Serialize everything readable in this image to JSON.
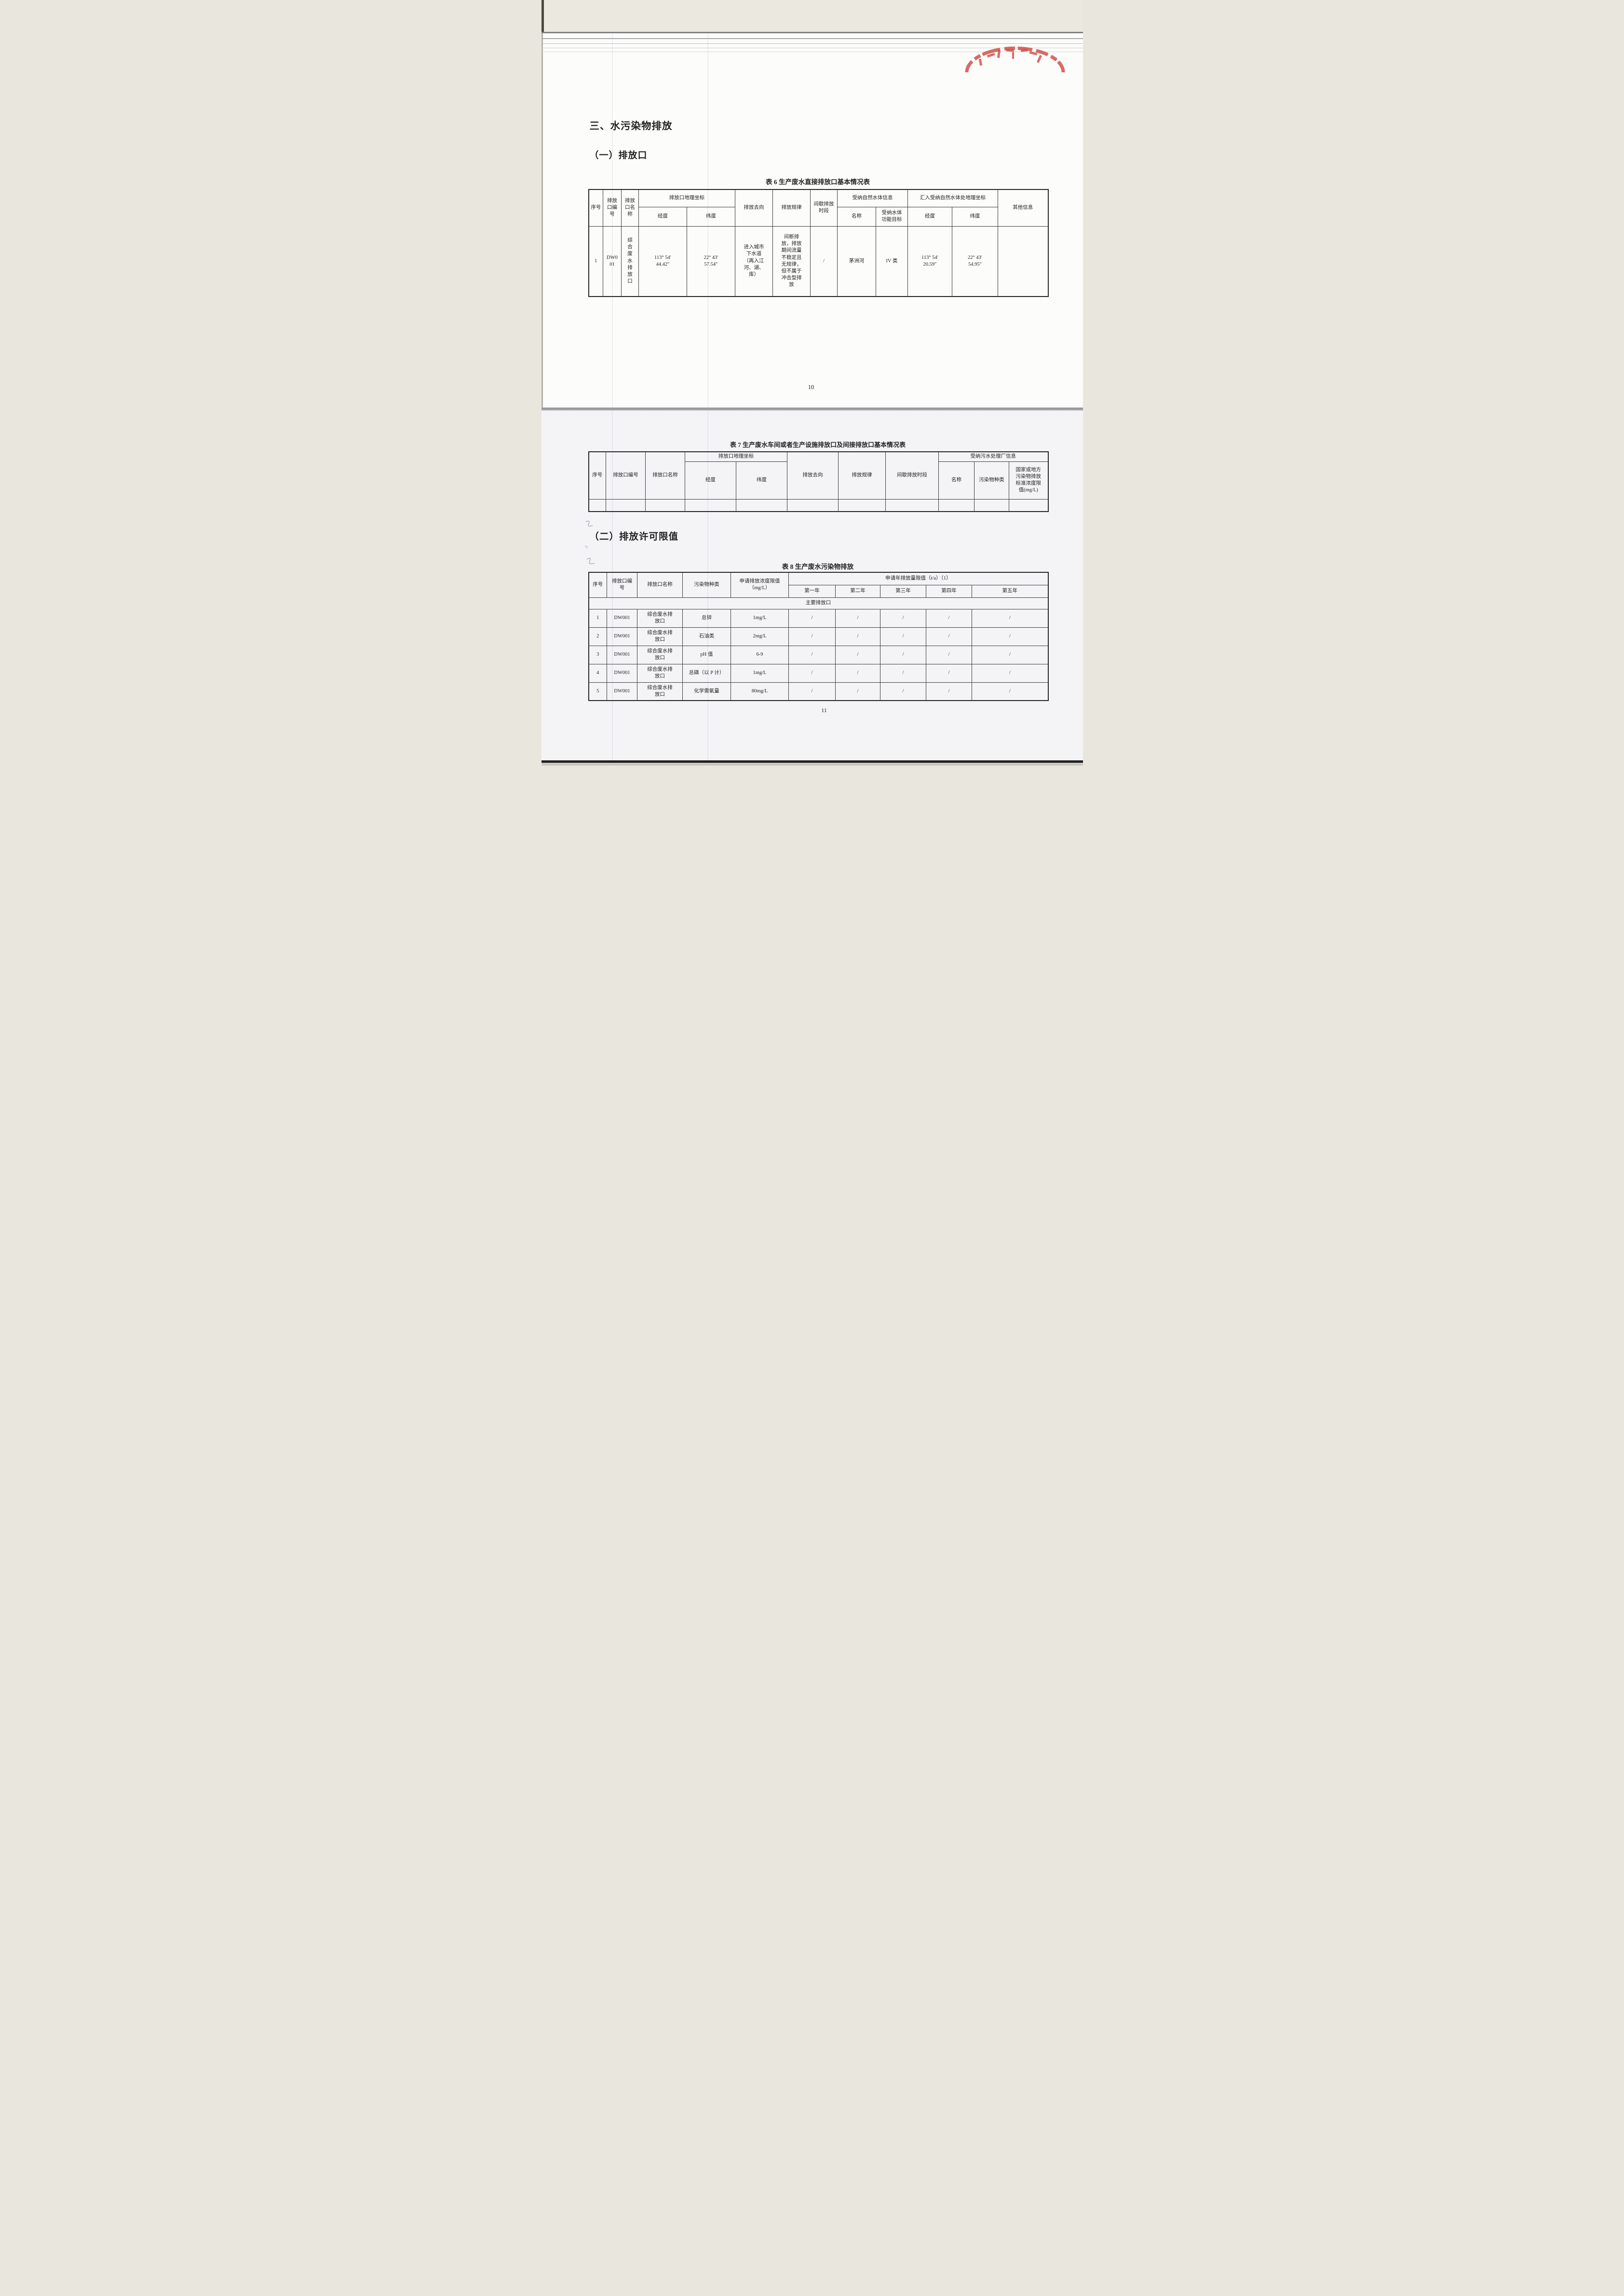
{
  "stamp": {
    "color": "#d0453e"
  },
  "page1": {
    "heading": "三、水污染物排放",
    "subheading": "（一）排放口",
    "page_number": "10",
    "table6": {
      "caption": "表 6  生产废水直接排放口基本情况表",
      "h": {
        "xh": "序号",
        "bh": "排放\n口编\n号",
        "mc": "排放\n口名\n称",
        "dlzb": "排放口地理坐标",
        "jd": "经度",
        "wd": "纬度",
        "qx": "排放去向",
        "gl": "排放规律",
        "jx": "间歇排放\n时段",
        "snxx": "受纳自然水体信息",
        "snmc": "名称",
        "gnmb": "受纳水体\n功能目标",
        "hrzb": "汇入受纳自然水体处地理坐标",
        "jd2": "经度",
        "wd2": "纬度",
        "qt": "其他信息"
      },
      "row": [
        "1",
        "DW0\n01",
        "综\n合\n废\n水\n排\n放\n口",
        "113° 54′\n44.42″",
        "22° 43′\n57.54″",
        "进入城市\n下水道\n（再入江\n河、湖、\n库）",
        "间断排\n放，排放\n期间流量\n不稳定且\n无规律，\n但不属于\n冲击型排\n放",
        "/",
        "茅洲河",
        "IV 类",
        "113° 54′\n20.59″",
        "22° 43′\n54.95″",
        ""
      ]
    }
  },
  "page2": {
    "subheading": "（二）排放许可限值",
    "page_number": "11",
    "table7": {
      "caption": "表 7 生产废水车间或者生产设施排放口及间接排放口基本情况表",
      "h": {
        "xh": "序号",
        "bh": "排放口编号",
        "mc": "排放口名称",
        "dlzb": "排放口地理坐标",
        "jd": "经度",
        "wd": "纬度",
        "qx": "排放去向",
        "gl": "排放规律",
        "jx": "间歇排放时段",
        "snxx": "受纳污水处理厂信息",
        "snmc": "名称",
        "wrw": "污染物种类",
        "gj": "国家或地方\n污染物排放\n标准浓度限\n值(mg/L)"
      }
    },
    "table8": {
      "caption": "表 8  生产废水污染物排放",
      "h": {
        "xh": "序号",
        "bh": "排放口编\n号",
        "mc": "排放口名称",
        "wrw": "污染物种类",
        "nd": "申请排放浓度限值\n（mg/L）",
        "nx": "申请年排放量限值（t/a）（1）",
        "y1": "第一年",
        "y2": "第二年",
        "y3": "第三年",
        "y4": "第四年",
        "y5": "第五年"
      },
      "group_label": "主要排放口",
      "rows": [
        [
          "1",
          "DW001",
          "综合废水排\n放口",
          "总锌",
          "1mg/L",
          "/",
          "/",
          "/",
          "/",
          "/"
        ],
        [
          "2",
          "DW001",
          "综合废水排\n放口",
          "石油类",
          "2mg/L",
          "/",
          "/",
          "/",
          "/",
          "/"
        ],
        [
          "3",
          "DW001",
          "综合废水排\n放口",
          "pH 值",
          "6-9",
          "/",
          "/",
          "/",
          "/",
          "/"
        ],
        [
          "4",
          "DW001",
          "综合废水排\n放口",
          "总磷（以 P 计）",
          "1mg/L",
          "/",
          "/",
          "/",
          "/",
          "/"
        ],
        [
          "5",
          "DW001",
          "综合废水排\n放口",
          "化学需氧量",
          "80mg/L",
          "/",
          "/",
          "/",
          "/",
          "/"
        ]
      ]
    }
  }
}
